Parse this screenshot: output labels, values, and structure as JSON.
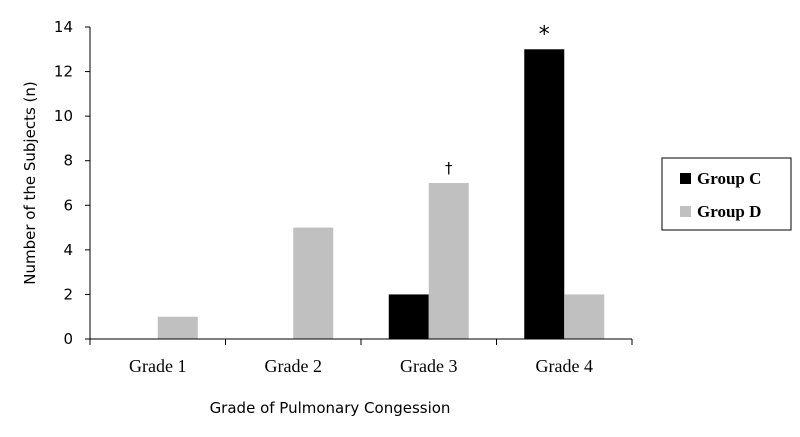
{
  "chart_data": {
    "type": "bar",
    "categories": [
      "Grade 1",
      "Grade 2",
      "Grade 3",
      "Grade 4"
    ],
    "series": [
      {
        "name": "Group C",
        "values": [
          0,
          0,
          2,
          13
        ],
        "color": "#000000"
      },
      {
        "name": "Group D",
        "values": [
          1,
          5,
          7,
          2
        ],
        "color": "#c0c0c0"
      }
    ],
    "xlabel": "Grade of Pulmonary Congession",
    "ylabel": "Number of the Subjects (n)",
    "ylim": [
      0,
      14
    ],
    "yticks": [
      "0",
      "2",
      "4",
      "6",
      "8",
      "10",
      "12",
      "14"
    ],
    "annotations": [
      {
        "text": "†",
        "category": "Grade 3",
        "series": "Group D"
      },
      {
        "text": "*",
        "category": "Grade 4",
        "series": "Group C"
      }
    ],
    "grid": false,
    "legend_position": "right"
  }
}
